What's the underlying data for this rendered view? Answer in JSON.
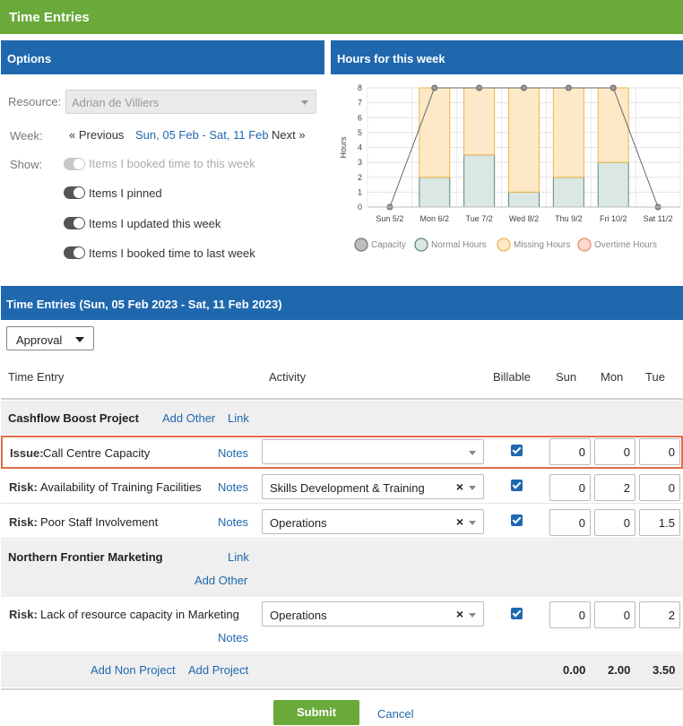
{
  "app": {
    "title": "Time Entries"
  },
  "options": {
    "header": "Options",
    "resource_label": "Resource:",
    "resource_value": "Adrian de Villiers",
    "week_label": "Week:",
    "prev": "« Previous",
    "week_range": "Sun, 05 Feb - Sat, 11 Feb",
    "next": "Next »",
    "show_label": "Show:",
    "toggles": [
      {
        "label": "Items I booked time to this week",
        "enabled": false
      },
      {
        "label": "Items I pinned",
        "enabled": true
      },
      {
        "label": "Items I updated this week",
        "enabled": true
      },
      {
        "label": "Items I booked time to last week",
        "enabled": true
      }
    ]
  },
  "chart_panel": {
    "header": "Hours for this week"
  },
  "chart_data": {
    "type": "bar",
    "ylabel": "Hours",
    "ylim": [
      0,
      8
    ],
    "yticks": [
      "0",
      "1",
      "2",
      "3",
      "4",
      "5",
      "6",
      "7",
      "8"
    ],
    "categories": [
      "Sun 5/2",
      "Mon 6/2",
      "Tue 7/2",
      "Wed 8/2",
      "Thu 9/2",
      "Fri 10/2",
      "Sat 11/2"
    ],
    "series": [
      {
        "name": "Capacity",
        "values": [
          0,
          8,
          8,
          8,
          8,
          8,
          0
        ],
        "color": "#9a9a9a"
      },
      {
        "name": "Normal Hours",
        "values": [
          0,
          2,
          3.5,
          1,
          2,
          3,
          0
        ],
        "color": "#dae7e2",
        "stroke": "#5e8a7c"
      },
      {
        "name": "Missing Hours",
        "values": [
          0,
          6,
          4.5,
          7,
          6,
          5,
          0
        ],
        "color": "#fde9c8",
        "stroke": "#f0b44a"
      },
      {
        "name": "Overtime Hours",
        "values": [
          0,
          0,
          0,
          0,
          0,
          0,
          0
        ],
        "color": "#fcd9cc",
        "stroke": "#f08a6a"
      }
    ],
    "legend": "bottom"
  },
  "entries": {
    "header": "Time Entries (Sun, 05 Feb 2023 - Sat, 11 Feb 2023)",
    "approval": "Approval",
    "columns": {
      "time_entry": "Time Entry",
      "activity": "Activity",
      "billable": "Billable",
      "sun": "Sun",
      "mon": "Mon",
      "tue": "Tue"
    },
    "groups": [
      {
        "name": "Cashflow Boost Project",
        "add_other": "Add Other",
        "link": "Link",
        "rows": [
          {
            "type": "Issue:",
            "name": "Call Centre Capacity",
            "notes": "Notes",
            "activity": "",
            "billable": true,
            "sun": "0",
            "mon": "0",
            "tue": "0"
          },
          {
            "type": "Risk:",
            "name": "Availability of Training Facilities",
            "notes": "Notes",
            "activity": "Skills Development & Training",
            "billable": true,
            "sun": "0",
            "mon": "2",
            "tue": "0"
          },
          {
            "type": "Risk:",
            "name": "Poor Staff Involvement",
            "notes": "Notes",
            "activity": "Operations",
            "billable": true,
            "sun": "0",
            "mon": "0",
            "tue": "1.5"
          }
        ]
      },
      {
        "name": "Northern Frontier Marketing",
        "add_other": "Add Other",
        "link": "Link",
        "rows": [
          {
            "type": "Risk:",
            "name": "Lack of resource capacity in Marketing",
            "notes": "Notes",
            "activity": "Operations",
            "billable": true,
            "sun": "0",
            "mon": "0",
            "tue": "2"
          }
        ]
      }
    ],
    "footer": {
      "add_non_project": "Add Non Project",
      "add_project": "Add Project",
      "totals": {
        "sun": "0.00",
        "mon": "2.00",
        "tue": "3.50"
      }
    },
    "submit": "Submit",
    "cancel": "Cancel"
  }
}
